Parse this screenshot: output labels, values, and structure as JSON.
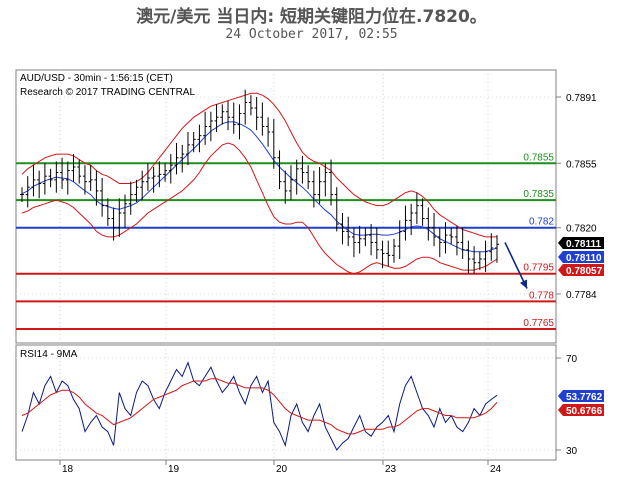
{
  "header": {
    "title": "澳元/美元 当日内: 短期关键阻力位在.7820。",
    "subtitle": "24 October 2017, 02:55"
  },
  "chart_data": [
    {
      "type": "line",
      "subtype": "candlestick-with-bollinger-bands",
      "panel": "price",
      "info_line_1": "AUD/USD - 30min - 1:56:15 (CET)",
      "info_line_2": "Research © 2017 TRADING CENTRAL",
      "x_tick_labels": [
        "18",
        "19",
        "20",
        "23",
        "24"
      ],
      "y_ticks": [
        0.7891,
        0.7855,
        0.782,
        0.7784
      ],
      "y_tick_labels": [
        "0.7891",
        "0.7855",
        "0.7820",
        "0.7784"
      ],
      "ylim": [
        0.7755,
        0.7905
      ],
      "grid": true,
      "levels": [
        {
          "value": 0.7855,
          "label": "0.7855",
          "color": "#1e8f1e"
        },
        {
          "value": 0.7835,
          "label": "0.7835",
          "color": "#1e8f1e"
        },
        {
          "value": 0.782,
          "label": "0.782",
          "color": "#1f3fd1"
        },
        {
          "value": 0.7795,
          "label": "0.7795",
          "color": "#d01818"
        },
        {
          "value": 0.778,
          "label": "0.778",
          "color": "#d01818"
        },
        {
          "value": 0.7765,
          "label": "0.7765",
          "color": "#d01818"
        }
      ],
      "price_badges": [
        {
          "value": 0.78111,
          "label": "0.78111",
          "color": "#000000"
        },
        {
          "value": 0.7811,
          "label": "0.78110",
          "color": "#1f3fd1"
        },
        {
          "value": 0.78057,
          "label": "0.78057",
          "color": "#d01818"
        }
      ],
      "forecast_arrow": {
        "from": 0.7812,
        "to": 0.7787,
        "color": "#0a2a8a"
      },
      "close_series": [
        0.7838,
        0.7842,
        0.7846,
        0.7844,
        0.7848,
        0.7846,
        0.785,
        0.7846,
        0.7851,
        0.7853,
        0.7848,
        0.7845,
        0.7846,
        0.784,
        0.7832,
        0.7825,
        0.782,
        0.7828,
        0.7833,
        0.7838,
        0.7842,
        0.7845,
        0.7847,
        0.7848,
        0.7849,
        0.7851,
        0.7854,
        0.7858,
        0.786,
        0.7865,
        0.7868,
        0.787,
        0.7875,
        0.7878,
        0.788,
        0.7883,
        0.788,
        0.7876,
        0.7882,
        0.7888,
        0.7885,
        0.788,
        0.7875,
        0.7872,
        0.7858,
        0.7845,
        0.784,
        0.7846,
        0.7852,
        0.785,
        0.7845,
        0.7838,
        0.7845,
        0.785,
        0.7838,
        0.7822,
        0.7818,
        0.7815,
        0.7812,
        0.7814,
        0.7816,
        0.7812,
        0.7808,
        0.7806,
        0.7805,
        0.781,
        0.7818,
        0.7824,
        0.7828,
        0.7832,
        0.7825,
        0.782,
        0.7815,
        0.7812,
        0.7816,
        0.7815,
        0.7812,
        0.7808,
        0.7803,
        0.7801,
        0.7803,
        0.7807,
        0.7809,
        0.7811
      ],
      "upper_band": [
        0.7849,
        0.7852,
        0.7854,
        0.7856,
        0.7858,
        0.7859,
        0.786,
        0.786,
        0.786,
        0.7859,
        0.7857,
        0.7855,
        0.7854,
        0.7851,
        0.7849,
        0.7848,
        0.7846,
        0.7844,
        0.7844,
        0.7844,
        0.7845,
        0.7847,
        0.785,
        0.7854,
        0.7858,
        0.7862,
        0.7866,
        0.787,
        0.7874,
        0.7877,
        0.788,
        0.7882,
        0.7884,
        0.7886,
        0.7887,
        0.7888,
        0.7889,
        0.789,
        0.7891,
        0.7892,
        0.7893,
        0.7893,
        0.7892,
        0.789,
        0.7887,
        0.7883,
        0.7878,
        0.7872,
        0.7866,
        0.7861,
        0.7858,
        0.7856,
        0.7855,
        0.7853,
        0.7851,
        0.7847,
        0.7844,
        0.7841,
        0.7838,
        0.7836,
        0.7834,
        0.7833,
        0.7832,
        0.7832,
        0.7833,
        0.7835,
        0.7837,
        0.7839,
        0.784,
        0.7839,
        0.7837,
        0.7834,
        0.783,
        0.7827,
        0.7825,
        0.7823,
        0.7821,
        0.7819,
        0.7818,
        0.7817,
        0.7816,
        0.7815,
        0.7815,
        0.7815
      ],
      "lower_band": [
        0.7828,
        0.7829,
        0.7831,
        0.7832,
        0.7833,
        0.7834,
        0.7835,
        0.7834,
        0.7833,
        0.7831,
        0.7828,
        0.7825,
        0.7822,
        0.7818,
        0.7816,
        0.7815,
        0.7815,
        0.7816,
        0.7818,
        0.782,
        0.7822,
        0.7825,
        0.7828,
        0.783,
        0.7832,
        0.7834,
        0.7836,
        0.7838,
        0.784,
        0.7843,
        0.7846,
        0.785,
        0.7855,
        0.7859,
        0.7862,
        0.7865,
        0.7866,
        0.7865,
        0.7862,
        0.7858,
        0.7853,
        0.7846,
        0.7839,
        0.7832,
        0.7826,
        0.7823,
        0.7822,
        0.7822,
        0.7823,
        0.7823,
        0.782,
        0.7815,
        0.781,
        0.7806,
        0.7803,
        0.78,
        0.7798,
        0.7796,
        0.7795,
        0.7796,
        0.7798,
        0.78,
        0.7801,
        0.78,
        0.7799,
        0.7798,
        0.7798,
        0.7799,
        0.7801,
        0.7803,
        0.7804,
        0.7804,
        0.7803,
        0.7801,
        0.78,
        0.7799,
        0.7798,
        0.7797,
        0.7797,
        0.7797,
        0.7798,
        0.7799,
        0.7801,
        0.7803
      ],
      "middle_band": [
        0.78385,
        0.784,
        0.78425,
        0.7844,
        0.78455,
        0.78465,
        0.78475,
        0.7847,
        0.78465,
        0.7845,
        0.78425,
        0.784,
        0.7838,
        0.78345,
        0.78325,
        0.78315,
        0.78305,
        0.783,
        0.7831,
        0.7832,
        0.78335,
        0.7836,
        0.7839,
        0.7842,
        0.7845,
        0.7848,
        0.7851,
        0.7854,
        0.7857,
        0.786,
        0.7863,
        0.7866,
        0.78695,
        0.78725,
        0.78745,
        0.78765,
        0.78775,
        0.78775,
        0.78765,
        0.7875,
        0.7873,
        0.78695,
        0.78655,
        0.7861,
        0.78565,
        0.7853,
        0.785,
        0.7847,
        0.78445,
        0.7842,
        0.7839,
        0.78355,
        0.78325,
        0.78295,
        0.7827,
        0.78235,
        0.7821,
        0.78185,
        0.78165,
        0.7816,
        0.7816,
        0.78165,
        0.78165,
        0.7816,
        0.7816,
        0.78165,
        0.78175,
        0.7819,
        0.78205,
        0.7821,
        0.78205,
        0.7819,
        0.78165,
        0.7814,
        0.78125,
        0.7811,
        0.78095,
        0.7808,
        0.78075,
        0.7807,
        0.7807,
        0.7807,
        0.7808,
        0.7809
      ]
    },
    {
      "type": "line",
      "panel": "indicator",
      "title": "RSI14 - 9MA",
      "y_ticks": [
        70,
        30
      ],
      "ylim": [
        25,
        78
      ],
      "badges": [
        {
          "label": "53.7762",
          "value": 53.7762,
          "color": "#1f3fd1"
        },
        {
          "label": "50.6766",
          "value": 50.6766,
          "color": "#d01818"
        }
      ],
      "series": [
        {
          "color": "#0a1a80",
          "values": [
            38,
            45,
            55,
            50,
            58,
            62,
            55,
            60,
            58,
            52,
            48,
            38,
            42,
            45,
            40,
            38,
            32,
            55,
            48,
            45,
            55,
            60,
            58,
            52,
            48,
            55,
            60,
            65,
            62,
            68,
            60,
            58,
            62,
            66,
            60,
            55,
            58,
            62,
            55,
            50,
            58,
            62,
            55,
            60,
            42,
            38,
            32,
            45,
            50,
            42,
            38,
            45,
            50,
            40,
            35,
            30,
            33,
            35,
            40,
            45,
            38,
            36,
            40,
            42,
            45,
            38,
            50,
            58,
            62,
            55,
            48,
            45,
            40,
            48,
            42,
            45,
            40,
            38,
            42,
            48,
            45,
            50,
            52,
            53.8
          ]
        },
        {
          "color": "#d01818",
          "values": [
            45,
            46,
            48,
            50,
            52,
            54,
            55,
            56,
            56,
            55,
            53,
            50,
            48,
            46,
            45,
            43,
            41,
            42,
            43,
            44,
            46,
            48,
            50,
            52,
            53,
            54,
            55,
            56,
            58,
            59,
            60,
            60,
            60,
            61,
            61,
            60,
            59,
            59,
            58,
            57,
            57,
            57,
            57,
            56,
            54,
            51,
            48,
            46,
            45,
            44,
            43,
            43,
            43,
            42,
            41,
            39,
            38,
            37,
            37,
            38,
            39,
            39,
            39,
            39,
            40,
            40,
            41,
            43,
            45,
            47,
            48,
            48,
            47,
            46,
            45,
            45,
            44,
            44,
            44,
            44,
            45,
            46,
            48,
            50.7
          ]
        }
      ]
    }
  ]
}
